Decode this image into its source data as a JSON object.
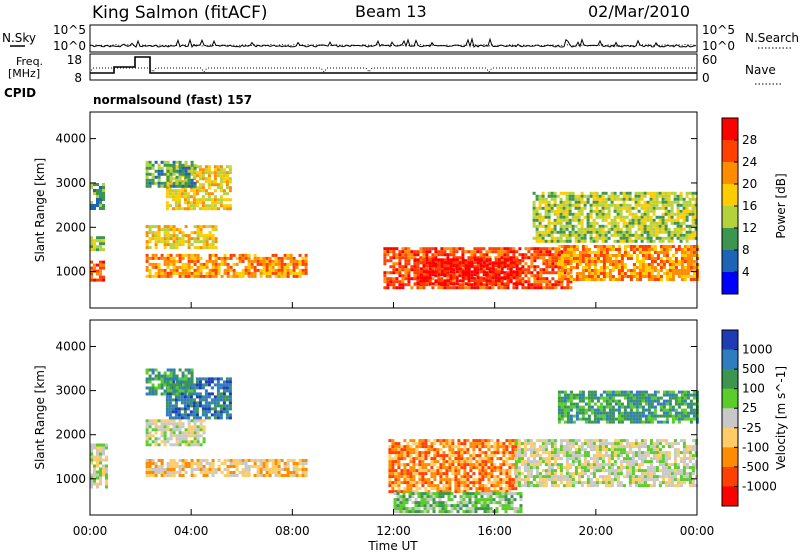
{
  "header": {
    "station": "King Salmon (fitACF)",
    "beam": "Beam 13",
    "date": "02/Mar/2010"
  },
  "noise_panel": {
    "left_label": "N.Sky",
    "right_label": "N.Search",
    "left_ticks": [
      "10^5",
      "10^0"
    ],
    "right_ticks": [
      "10^5",
      "10^0"
    ]
  },
  "freq_panel": {
    "left_label": "Freq.",
    "left_unit": "[MHz]",
    "left_ticks": [
      "18",
      "8"
    ],
    "right_label": "Nave",
    "right_ticks": [
      "60",
      "0"
    ],
    "cpid_label": "CPID",
    "cpid_text": "normalsound (fast) 157"
  },
  "chart_data": [
    {
      "type": "heatmap",
      "name": "power",
      "xlabel": "",
      "ylabel": "Slant Range [km]",
      "xlim": [
        0,
        24
      ],
      "ylim": [
        180,
        4600
      ],
      "yticks": [
        1000,
        2000,
        3000,
        4000
      ],
      "colorbar": {
        "label": "Power [dB]",
        "ticks": [
          "28",
          "24",
          "20",
          "16",
          "12",
          "8",
          "4"
        ],
        "colors": [
          "#ff0000",
          "#ff4000",
          "#ff8c00",
          "#ffcc00",
          "#b4d23c",
          "#3c9650",
          "#1e64b4",
          "#0000ff"
        ]
      },
      "regions": [
        {
          "t": [
            0.0,
            0.55
          ],
          "r": [
            820,
            1250
          ],
          "level": 6
        },
        {
          "t": [
            0.0,
            0.5
          ],
          "r": [
            1500,
            1800
          ],
          "level": 3
        },
        {
          "t": [
            0.0,
            0.5
          ],
          "r": [
            2400,
            3000
          ],
          "level": 2
        },
        {
          "t": [
            2.2,
            8.6
          ],
          "r": [
            880,
            1400
          ],
          "level": 5
        },
        {
          "t": [
            2.2,
            5.0
          ],
          "r": [
            1550,
            2050
          ],
          "level": 4
        },
        {
          "t": [
            3.0,
            5.6
          ],
          "r": [
            2400,
            3400
          ],
          "level": 4
        },
        {
          "t": [
            2.2,
            4.2
          ],
          "r": [
            2900,
            3500
          ],
          "level": 2
        },
        {
          "t": [
            11.6,
            19.0
          ],
          "r": [
            650,
            1550
          ],
          "level": 6
        },
        {
          "t": [
            12.8,
            17.0
          ],
          "r": [
            750,
            1300
          ],
          "level": 7
        },
        {
          "t": [
            18.5,
            24.0
          ],
          "r": [
            800,
            1600
          ],
          "level": 5
        },
        {
          "t": [
            17.5,
            24.0
          ],
          "r": [
            1700,
            2800
          ],
          "level": 3
        }
      ]
    },
    {
      "type": "heatmap",
      "name": "velocity",
      "xlabel": "Time UT",
      "ylabel": "Slant Range [km]",
      "xlim": [
        0,
        24
      ],
      "ylim": [
        180,
        4600
      ],
      "yticks": [
        1000,
        2000,
        3000,
        4000
      ],
      "xticks": [
        "00:00",
        "04:00",
        "08:00",
        "12:00",
        "16:00",
        "20:00",
        "00:00"
      ],
      "colorbar": {
        "label": "Velocity [m s^-1]",
        "ticks": [
          "1000",
          "500",
          "100",
          "25",
          "-25",
          "-100",
          "-500",
          "-1000"
        ],
        "colors": [
          "#1e3cb4",
          "#2e7dbf",
          "#3c9650",
          "#5acd28",
          "#c8c8c8",
          "#ffcc66",
          "#ff8c00",
          "#ff4000",
          "#ff0000"
        ]
      },
      "regions": [
        {
          "t": [
            0.0,
            0.6
          ],
          "r": [
            800,
            1800
          ],
          "level": 4
        },
        {
          "t": [
            2.2,
            8.6
          ],
          "r": [
            1050,
            1450
          ],
          "level": 3
        },
        {
          "t": [
            2.2,
            4.5
          ],
          "r": [
            1800,
            2350
          ],
          "level": 4
        },
        {
          "t": [
            3.0,
            5.6
          ],
          "r": [
            2400,
            3300
          ],
          "level": 7
        },
        {
          "t": [
            2.2,
            4.0
          ],
          "r": [
            2900,
            3500
          ],
          "level": 6
        },
        {
          "t": [
            11.8,
            16.8
          ],
          "r": [
            700,
            1900
          ],
          "level": 2
        },
        {
          "t": [
            12.0,
            17.0
          ],
          "r": [
            250,
            700
          ],
          "level": 5
        },
        {
          "t": [
            16.8,
            24.0
          ],
          "r": [
            850,
            1900
          ],
          "level": 4
        },
        {
          "t": [
            18.5,
            24.0
          ],
          "r": [
            2300,
            3000
          ],
          "level": 6
        }
      ]
    }
  ]
}
